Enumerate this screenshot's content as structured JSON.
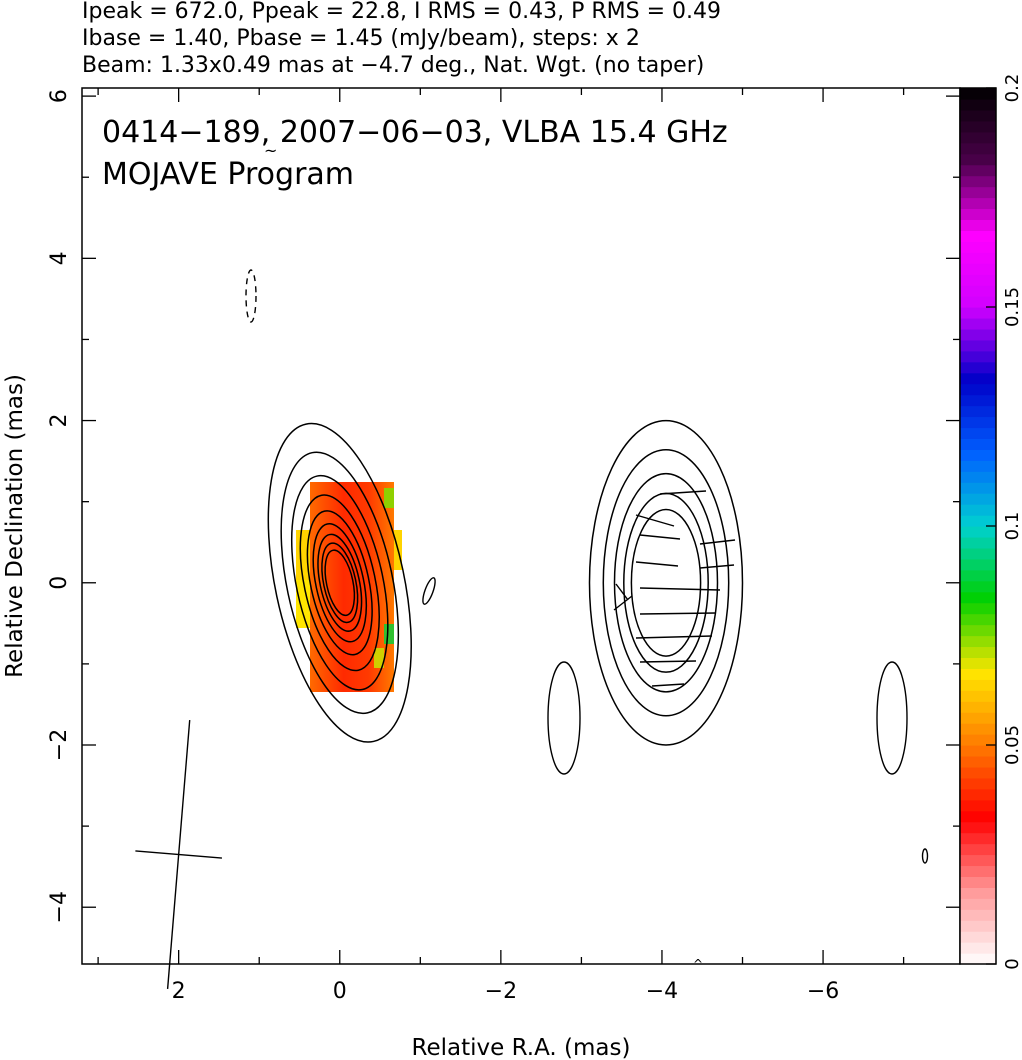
{
  "header": {
    "line1": "Ipeak = 672.0, Ppeak = 22.8, I RMS = 0.43, P RMS = 0.49",
    "line2": "Ibase = 1.40, Pbase = 1.45 (mJy/beam), steps: x 2",
    "line3": "Beam: 1.33x0.49 mas at −4.7 deg., Nat. Wgt. (no taper)"
  },
  "inset": {
    "line1": "0414−189, 2007−06−03, VLBA 15.4 GHz",
    "line2": "MOJAVE Program"
  },
  "chart_data": {
    "type": "heatmap",
    "xlabel": "Relative R.A. (mas)",
    "ylabel": "Relative Declination (mas)",
    "xlim": [
      3.2,
      -7.7
    ],
    "ylim": [
      -4.7,
      6.1
    ],
    "x_ticks": [
      2,
      0,
      -2,
      -4,
      -6
    ],
    "x_tick_labels": [
      "2",
      "0",
      "−2",
      "−4",
      "−6"
    ],
    "y_ticks": [
      -4,
      -2,
      0,
      2,
      4,
      6
    ],
    "y_tick_labels": [
      "−4",
      "−2",
      "0",
      "2",
      "4",
      "6"
    ],
    "colorbar": {
      "range": [
        0,
        0.2
      ],
      "ticks": [
        0,
        0.05,
        0.1,
        0.15,
        0.2
      ],
      "tick_labels": [
        "0",
        "0.05",
        "0.1",
        "0.15",
        "0.2"
      ],
      "colors": [
        "#ffffff",
        "#ff9999",
        "#ff0000",
        "#ff7a00",
        "#ffe600",
        "#00d000",
        "#00d0d0",
        "#0060ff",
        "#0000c8",
        "#d000ff",
        "#ff00ff",
        "#4a004a",
        "#000000"
      ]
    },
    "components": [
      {
        "name": "core",
        "ra": 0.0,
        "dec": 0.0,
        "contour_levels": 9,
        "outer_half_ra": 0.8,
        "outer_half_dec": 2.0,
        "tilt_deg": -12
      },
      {
        "name": "jet",
        "ra": -4.05,
        "dec": 0.0,
        "contour_levels": 5,
        "outer_half_ra": 0.95,
        "outer_half_dec": 2.0,
        "tilt_deg": 0
      }
    ],
    "beam": {
      "ra": 2.0,
      "dec": -3.35,
      "major_mas": 1.33,
      "minor_mas": 0.49,
      "pa_deg": -4.7
    }
  }
}
